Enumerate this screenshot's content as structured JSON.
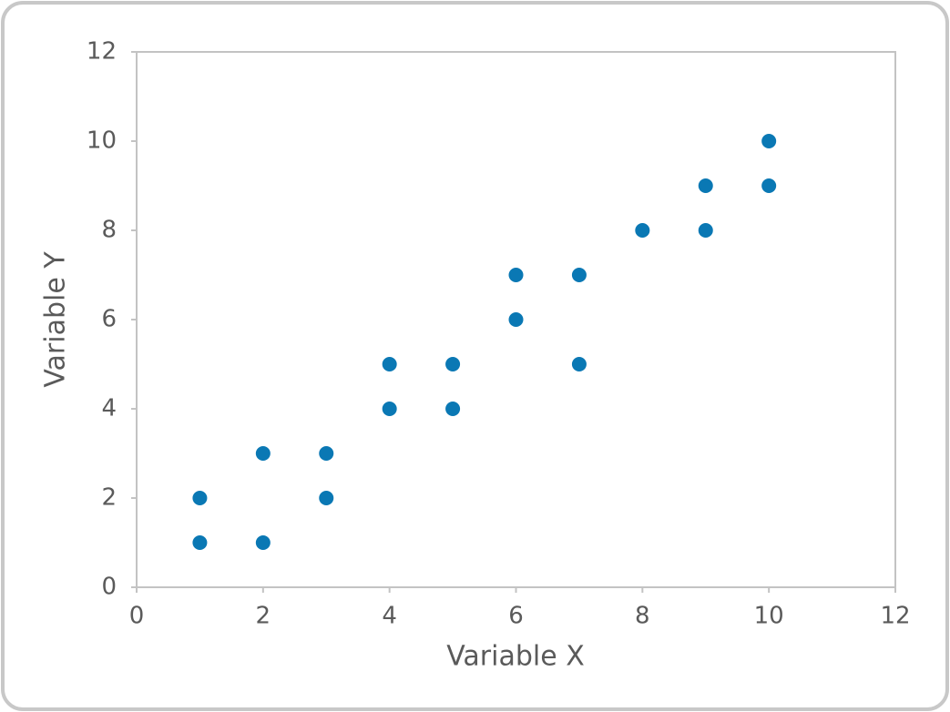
{
  "chart_data": {
    "type": "scatter",
    "x_label": "Variable X",
    "y_label": "Variable Y",
    "series": [
      {
        "color": "#0a78b4",
        "x": [
          1,
          1,
          2,
          2,
          3,
          3,
          4,
          4,
          5,
          5,
          6,
          6,
          7,
          7,
          8,
          9,
          9,
          10,
          10
        ],
        "values": [
          2,
          1,
          3,
          1,
          3,
          2,
          5,
          4,
          5,
          4,
          7,
          6,
          7,
          5,
          8,
          9,
          8,
          10,
          9
        ]
      }
    ],
    "xlim": [
      0,
      12
    ],
    "xticks": [
      0,
      2,
      4,
      6,
      8,
      10,
      12
    ],
    "ylim": [
      0,
      12
    ],
    "yticks": [
      0,
      2,
      4,
      6,
      8,
      10,
      12
    ]
  }
}
